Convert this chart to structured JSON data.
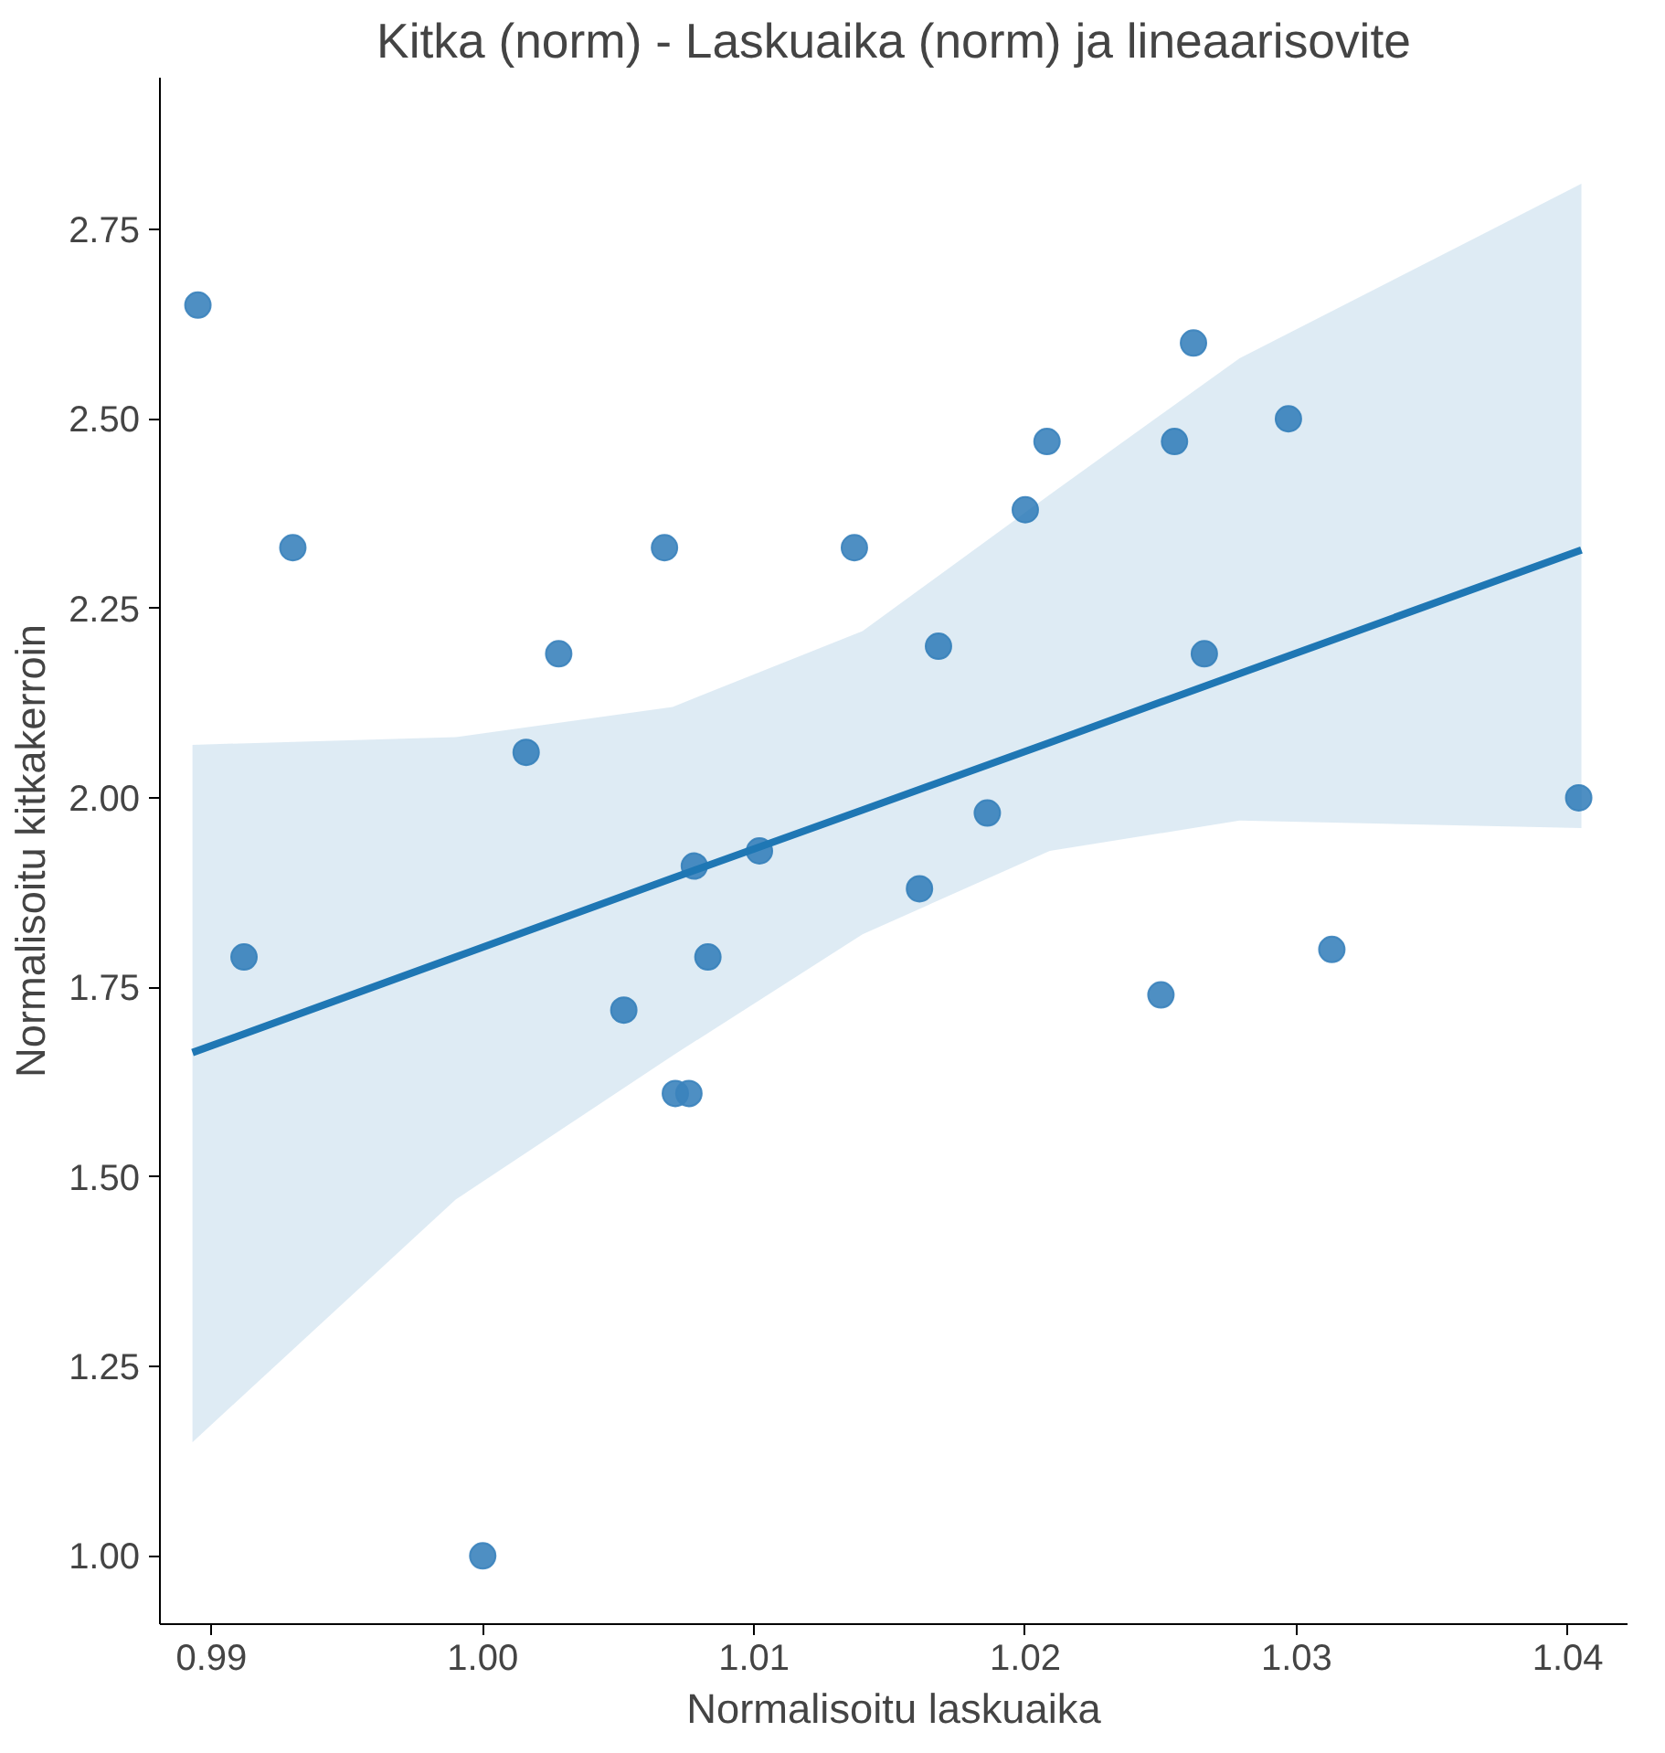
{
  "chart_data": {
    "type": "scatter",
    "title": "Kitka (norm) - Laskuaika (norm) ja lineaarisovite",
    "xlabel": "Normalisoitu laskuaika",
    "ylabel": "Normalisoitu kitkakerroin",
    "xlim": [
      0.9881,
      1.0422
    ],
    "ylim": [
      0.91,
      2.95
    ],
    "xticks": [
      {
        "value": 0.99,
        "label": "0.99"
      },
      {
        "value": 1.0,
        "label": "1.00"
      },
      {
        "value": 1.01,
        "label": "1.01"
      },
      {
        "value": 1.02,
        "label": "1.02"
      },
      {
        "value": 1.03,
        "label": "1.03"
      },
      {
        "value": 1.04,
        "label": "1.04"
      }
    ],
    "yticks": [
      {
        "value": 1.0,
        "label": "1.00"
      },
      {
        "value": 1.25,
        "label": "1.25"
      },
      {
        "value": 1.5,
        "label": "1.50"
      },
      {
        "value": 1.75,
        "label": "1.75"
      },
      {
        "value": 2.0,
        "label": "2.00"
      },
      {
        "value": 2.25,
        "label": "2.25"
      },
      {
        "value": 2.5,
        "label": "2.50"
      },
      {
        "value": 2.75,
        "label": "2.75"
      }
    ],
    "grid": false,
    "series": [
      {
        "marker": "circle",
        "color": "#3b83bd",
        "x": [
          0.9895,
          0.9912,
          0.993,
          1.0,
          1.0016,
          1.0028,
          1.0052,
          1.0067,
          1.0071,
          1.0076,
          1.0078,
          1.0083,
          1.0102,
          1.0137,
          1.0161,
          1.0168,
          1.0186,
          1.02,
          1.0208,
          1.025,
          1.0255,
          1.0262,
          1.0266,
          1.0297,
          1.0313,
          1.0404
        ],
        "values": [
          2.65,
          1.79,
          2.33,
          1.0,
          2.06,
          2.19,
          1.72,
          2.33,
          1.61,
          1.61,
          1.91,
          1.79,
          1.93,
          2.33,
          1.88,
          2.2,
          1.98,
          2.38,
          2.47,
          1.74,
          2.47,
          2.6,
          2.19,
          2.5,
          1.8,
          2.0
        ]
      },
      {
        "type": "line",
        "color": "#1f77b4",
        "x": [
          0.9893,
          0.999,
          1.007,
          1.014,
          1.0209,
          1.0279,
          1.0405
        ],
        "values": [
          1.664,
          1.79,
          1.894,
          1.984,
          2.073,
          2.164,
          2.327
        ],
        "lower": [
          1.15,
          1.47,
          1.66,
          1.82,
          1.93,
          1.97,
          1.96
        ],
        "upper": [
          2.07,
          2.08,
          2.12,
          2.22,
          2.4,
          2.58,
          2.81
        ]
      }
    ]
  }
}
